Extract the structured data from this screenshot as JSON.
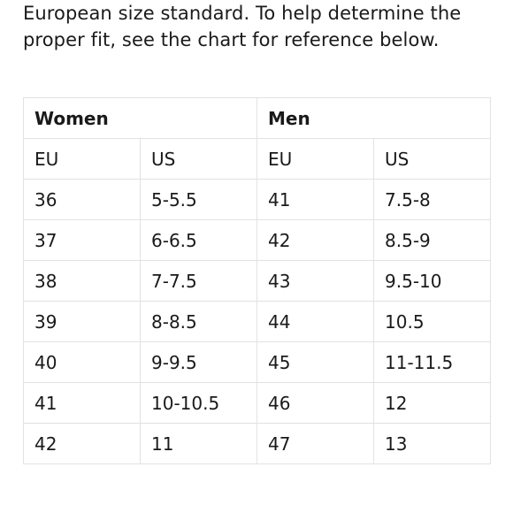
{
  "intro": {
    "line0": "European size standard. To help determine the",
    "line1": "proper fit, see the chart for reference below."
  },
  "size_chart": {
    "women_label": "Women",
    "men_label": "Men",
    "subheaders": [
      "EU",
      "US",
      "EU",
      "US"
    ],
    "rows": [
      [
        "36",
        "5-5.5",
        "41",
        "7.5-8"
      ],
      [
        "37",
        "6-6.5",
        "42",
        "8.5-9"
      ],
      [
        "38",
        "7-7.5",
        "43",
        "9.5-10"
      ],
      [
        "39",
        "8-8.5",
        "44",
        "10.5"
      ],
      [
        "40",
        "9-9.5",
        "45",
        "11-11.5"
      ],
      [
        "41",
        "10-10.5",
        "46",
        "12"
      ],
      [
        "42",
        "11",
        "47",
        "13"
      ]
    ]
  }
}
